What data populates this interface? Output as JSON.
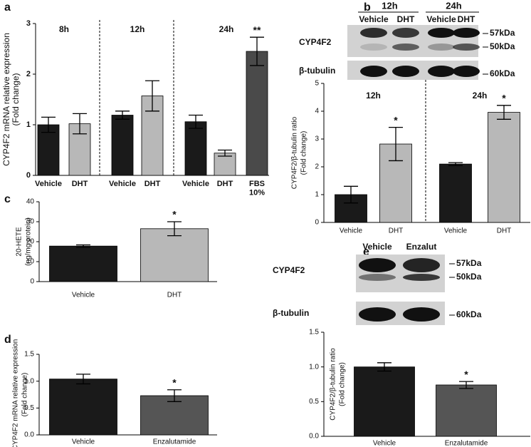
{
  "chart_data": [
    {
      "panel": "a",
      "type": "bar",
      "ylabel": [
        "CYP4F2 mRNA relative expression",
        "(Fold change)"
      ],
      "ylim": [
        0,
        3
      ],
      "yticks": [
        0,
        1,
        2,
        3
      ],
      "groups": [
        {
          "name": "8h",
          "categories": [
            "Vehicle",
            "DHT"
          ],
          "values": [
            1.0,
            1.02
          ],
          "errors": [
            0.15,
            0.2
          ],
          "colors": [
            "#1a1a1a",
            "#b8b8b8"
          ],
          "labels": [
            null,
            null
          ]
        },
        {
          "name": "12h",
          "categories": [
            "Vehicle",
            "DHT"
          ],
          "values": [
            1.19,
            1.57
          ],
          "errors": [
            0.08,
            0.3
          ],
          "colors": [
            "#1a1a1a",
            "#b8b8b8"
          ],
          "labels": [
            null,
            null
          ]
        },
        {
          "name": "24h",
          "categories": [
            "Vehicle",
            "DHT",
            "FBS\n10%"
          ],
          "values": [
            1.06,
            0.44,
            2.45
          ],
          "errors": [
            0.13,
            0.06,
            0.28
          ],
          "colors": [
            "#1a1a1a",
            "#b8b8b8",
            "#4a4a4a"
          ],
          "labels": [
            null,
            null,
            "**"
          ]
        }
      ]
    },
    {
      "panel": "b",
      "type": "bar",
      "ylabel": [
        "CYP4F2/β-tubulin ratio",
        "(Fold change)"
      ],
      "ylim": [
        0,
        5
      ],
      "yticks": [
        0,
        1,
        2,
        3,
        4,
        5
      ],
      "blot": {
        "time_groups": [
          "12h",
          "24h"
        ],
        "lanes": [
          "Vehicle",
          "DHT",
          "Vehicle",
          "DHT"
        ],
        "rows": [
          {
            "protein": "CYP4F2",
            "markers": [
              "57kDa",
              "50kDa"
            ]
          },
          {
            "protein": "β-tubulin",
            "markers": [
              "60kDa"
            ]
          }
        ]
      },
      "groups": [
        {
          "name": "12h",
          "categories": [
            "Vehicle",
            "DHT"
          ],
          "values": [
            1.0,
            2.82
          ],
          "errors": [
            0.3,
            0.6
          ],
          "colors": [
            "#1a1a1a",
            "#b8b8b8"
          ],
          "labels": [
            null,
            "*"
          ]
        },
        {
          "name": "24h",
          "categories": [
            "Vehicle",
            "DHT"
          ],
          "values": [
            2.1,
            3.96
          ],
          "errors": [
            0.05,
            0.25
          ],
          "colors": [
            "#1a1a1a",
            "#b8b8b8"
          ],
          "labels": [
            null,
            "*"
          ]
        }
      ]
    },
    {
      "panel": "c",
      "type": "bar",
      "ylabel": [
        "20-HETE",
        "(ng/mg protein)"
      ],
      "ylim": [
        0,
        40
      ],
      "yticks": [
        0,
        10,
        20,
        30,
        40
      ],
      "groups": [
        {
          "categories": [
            "Vehicle",
            "DHT"
          ],
          "values": [
            17.8,
            26.5
          ],
          "errors": [
            0.6,
            3.5
          ],
          "colors": [
            "#1a1a1a",
            "#b8b8b8"
          ],
          "labels": [
            null,
            "*"
          ]
        }
      ]
    },
    {
      "panel": "d",
      "type": "bar",
      "ylabel": [
        "CYP4F2 mRNA relative expression",
        "(Fold change)"
      ],
      "ylim": [
        0,
        1.5
      ],
      "yticks": [
        {
          "value": 0,
          "label": "0.0"
        },
        0.5,
        {
          "value": 1,
          "label": "1.0"
        },
        1.5
      ],
      "groups": [
        {
          "categories": [
            "Vehicle",
            "Enzalutamide"
          ],
          "values": [
            1.04,
            0.73
          ],
          "errors": [
            0.09,
            0.11
          ],
          "colors": [
            "#1a1a1a",
            "#555555"
          ],
          "labels": [
            null,
            "*"
          ]
        }
      ]
    },
    {
      "panel": "e",
      "type": "bar",
      "ylabel": [
        "CYP4F2/β-tubulin ratio",
        "(Fold change)"
      ],
      "ylim": [
        0,
        1.5
      ],
      "yticks": [
        {
          "value": 0,
          "label": "0.0"
        },
        0.5,
        {
          "value": 1,
          "label": "1.0"
        },
        1.5
      ],
      "blot": {
        "lanes": [
          "Vehicle",
          "Enzalut"
        ],
        "rows": [
          {
            "protein": "CYP4F2",
            "markers": [
              "57kDa",
              "50kDa"
            ]
          },
          {
            "protein": "β-tubulin",
            "markers": [
              "60kDa"
            ]
          }
        ]
      },
      "groups": [
        {
          "categories": [
            "Vehicle",
            "Enzalutamide"
          ],
          "values": [
            1.0,
            0.74
          ],
          "errors": [
            0.06,
            0.05
          ],
          "colors": [
            "#1a1a1a",
            "#555555"
          ],
          "labels": [
            null,
            "*"
          ]
        }
      ]
    }
  ]
}
